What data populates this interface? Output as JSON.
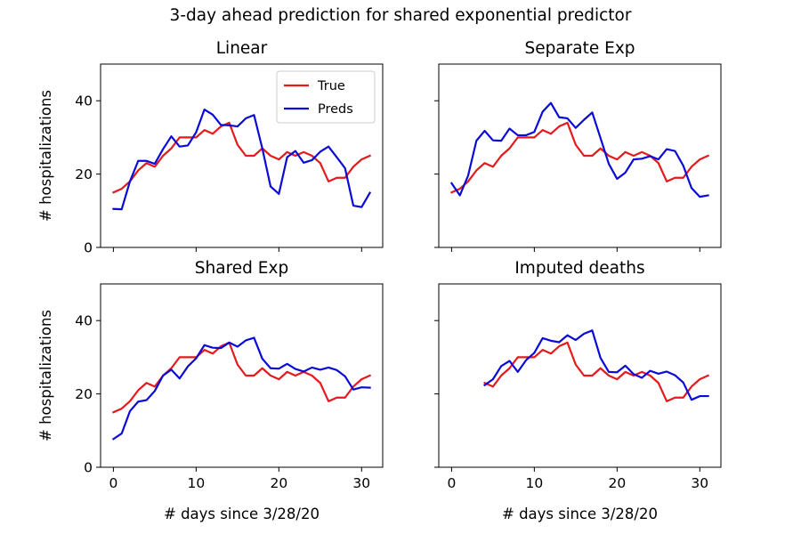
{
  "figure": {
    "title": "3-day ahead prediction for shared exponential predictor",
    "colors": {
      "True": "#e41a1c",
      "Preds": "#0b0bd9"
    }
  },
  "chart_data": [
    {
      "type": "line",
      "title": "Linear",
      "xlabel": "",
      "ylabel": "# hospitalizations",
      "xlim": [
        -1.55,
        32.55
      ],
      "ylim": [
        0,
        50
      ],
      "xticks": [
        0,
        10,
        20,
        30
      ],
      "yticks": [
        0,
        20,
        40
      ],
      "show_x_tick_labels": false,
      "show_y_tick_labels": true,
      "legend": {
        "show": true,
        "loc": "upper right",
        "entries": [
          "True",
          "Preds"
        ]
      },
      "series": [
        {
          "name": "True",
          "color": "#e41a1c",
          "x": [
            0,
            1,
            2,
            3,
            4,
            5,
            6,
            7,
            8,
            9,
            10,
            11,
            12,
            13,
            14,
            15,
            16,
            17,
            18,
            19,
            20,
            21,
            22,
            23,
            24,
            25,
            26,
            27,
            28,
            29,
            30,
            31
          ],
          "y": [
            15,
            16,
            18,
            21,
            23,
            22,
            25,
            27,
            30,
            30,
            30,
            32,
            31,
            33,
            34,
            28,
            25,
            25,
            27,
            25,
            24,
            26,
            25,
            26,
            25,
            23,
            18,
            19,
            19,
            22,
            24,
            25
          ]
        },
        {
          "name": "Preds",
          "color": "#0b0bd9",
          "x": [
            0,
            1,
            2,
            3,
            4,
            5,
            6,
            7,
            8,
            9,
            10,
            11,
            12,
            13,
            14,
            15,
            16,
            17,
            18,
            19,
            20,
            21,
            22,
            23,
            24,
            25,
            26,
            27,
            28,
            29,
            30,
            31
          ],
          "y": [
            10.5,
            10.4,
            18,
            23.6,
            23.6,
            22.8,
            26.8,
            30.3,
            27.5,
            27.8,
            31.4,
            37.6,
            36.2,
            33.4,
            33.3,
            33,
            35.2,
            36.1,
            27,
            16.6,
            14.6,
            24.6,
            26.3,
            23.1,
            23.8,
            26.1,
            27.5,
            24.6,
            21.6,
            11.4,
            11,
            14.9
          ]
        }
      ]
    },
    {
      "type": "line",
      "title": "Separate Exp",
      "xlabel": "",
      "ylabel": "",
      "xlim": [
        -1.55,
        32.55
      ],
      "ylim": [
        0,
        50
      ],
      "xticks": [
        0,
        10,
        20,
        30
      ],
      "yticks": [
        0,
        20,
        40
      ],
      "show_x_tick_labels": false,
      "show_y_tick_labels": false,
      "legend": {
        "show": false
      },
      "series": [
        {
          "name": "True",
          "color": "#e41a1c",
          "x": [
            0,
            1,
            2,
            3,
            4,
            5,
            6,
            7,
            8,
            9,
            10,
            11,
            12,
            13,
            14,
            15,
            16,
            17,
            18,
            19,
            20,
            21,
            22,
            23,
            24,
            25,
            26,
            27,
            28,
            29,
            30,
            31
          ],
          "y": [
            15,
            16,
            18,
            21,
            23,
            22,
            25,
            27,
            30,
            30,
            30,
            32,
            31,
            33,
            34,
            28,
            25,
            25,
            27,
            25,
            24,
            26,
            25,
            26,
            25,
            23,
            18,
            19,
            19,
            22,
            24,
            25
          ]
        },
        {
          "name": "Preds",
          "color": "#0b0bd9",
          "x": [
            0,
            1,
            2,
            3,
            4,
            5,
            6,
            7,
            8,
            9,
            10,
            11,
            12,
            13,
            14,
            15,
            16,
            17,
            18,
            19,
            20,
            21,
            22,
            23,
            24,
            25,
            26,
            27,
            28,
            29,
            30,
            31
          ],
          "y": [
            17.5,
            14.2,
            19.6,
            29.1,
            31.8,
            29.2,
            29.1,
            32.4,
            30.6,
            30.6,
            31.5,
            37,
            39.4,
            35.5,
            35.2,
            32.6,
            34.8,
            36.8,
            29.8,
            22.8,
            18.7,
            20.4,
            24,
            24.2,
            24.9,
            24,
            26.8,
            26.3,
            22.3,
            16.2,
            13.8,
            14.2
          ]
        }
      ]
    },
    {
      "type": "line",
      "title": "Shared Exp",
      "xlabel": "# days since 3/28/20",
      "ylabel": "# hospitalizations",
      "xlim": [
        -1.55,
        32.55
      ],
      "ylim": [
        0,
        50
      ],
      "xticks": [
        0,
        10,
        20,
        30
      ],
      "yticks": [
        0,
        20,
        40
      ],
      "show_x_tick_labels": true,
      "show_y_tick_labels": true,
      "legend": {
        "show": false
      },
      "series": [
        {
          "name": "True",
          "color": "#e41a1c",
          "x": [
            0,
            1,
            2,
            3,
            4,
            5,
            6,
            7,
            8,
            9,
            10,
            11,
            12,
            13,
            14,
            15,
            16,
            17,
            18,
            19,
            20,
            21,
            22,
            23,
            24,
            25,
            26,
            27,
            28,
            29,
            30,
            31
          ],
          "y": [
            15,
            16,
            18,
            21,
            23,
            22,
            25,
            27,
            30,
            30,
            30,
            32,
            31,
            33,
            34,
            28,
            25,
            25,
            27,
            25,
            24,
            26,
            25,
            26,
            25,
            23,
            18,
            19,
            19,
            22,
            24,
            25
          ]
        },
        {
          "name": "Preds",
          "color": "#0b0bd9",
          "x": [
            0,
            1,
            2,
            3,
            4,
            5,
            6,
            7,
            8,
            9,
            10,
            11,
            12,
            13,
            14,
            15,
            16,
            17,
            18,
            19,
            20,
            21,
            22,
            23,
            24,
            25,
            26,
            27,
            28,
            29,
            30,
            31
          ],
          "y": [
            7.7,
            9.2,
            15.3,
            17.9,
            18.3,
            20.8,
            25,
            26.6,
            24.2,
            27.5,
            29.7,
            33.3,
            32.6,
            32.5,
            34,
            32.9,
            34.6,
            35.3,
            29.6,
            27,
            26.9,
            28.2,
            26.8,
            26.1,
            27.2,
            26.6,
            27.2,
            26.5,
            24.8,
            21.2,
            21.8,
            21.7
          ]
        }
      ]
    },
    {
      "type": "line",
      "title": "Imputed deaths",
      "xlabel": "# days since 3/28/20",
      "ylabel": "",
      "xlim": [
        -1.55,
        32.55
      ],
      "ylim": [
        0,
        50
      ],
      "xticks": [
        0,
        10,
        20,
        30
      ],
      "yticks": [
        0,
        20,
        40
      ],
      "show_x_tick_labels": true,
      "show_y_tick_labels": false,
      "legend": {
        "show": false
      },
      "series": [
        {
          "name": "True",
          "color": "#e41a1c",
          "x": [
            4,
            5,
            6,
            7,
            8,
            9,
            10,
            11,
            12,
            13,
            14,
            15,
            16,
            17,
            18,
            19,
            20,
            21,
            22,
            23,
            24,
            25,
            26,
            27,
            28,
            29,
            30,
            31
          ],
          "y": [
            23,
            22,
            25,
            27,
            30,
            30,
            30,
            32,
            31,
            33,
            34,
            28,
            25,
            25,
            27,
            25,
            24,
            26,
            25,
            26,
            25,
            23,
            18,
            19,
            19,
            22,
            24,
            25
          ]
        },
        {
          "name": "Preds",
          "color": "#0b0bd9",
          "x": [
            4,
            5,
            6,
            7,
            8,
            9,
            10,
            11,
            12,
            13,
            14,
            15,
            16,
            17,
            18,
            19,
            20,
            21,
            22,
            23,
            24,
            25,
            26,
            27,
            28,
            29,
            30,
            31
          ],
          "y": [
            22.4,
            24,
            27.6,
            29,
            26,
            29.2,
            31.2,
            35.2,
            34.5,
            34.1,
            36,
            34.7,
            36.4,
            37.3,
            29.8,
            26,
            25.9,
            27.7,
            25.4,
            24.4,
            26.3,
            25.5,
            26.1,
            25.1,
            23.1,
            18.4,
            19.4,
            19.4
          ]
        }
      ]
    }
  ]
}
